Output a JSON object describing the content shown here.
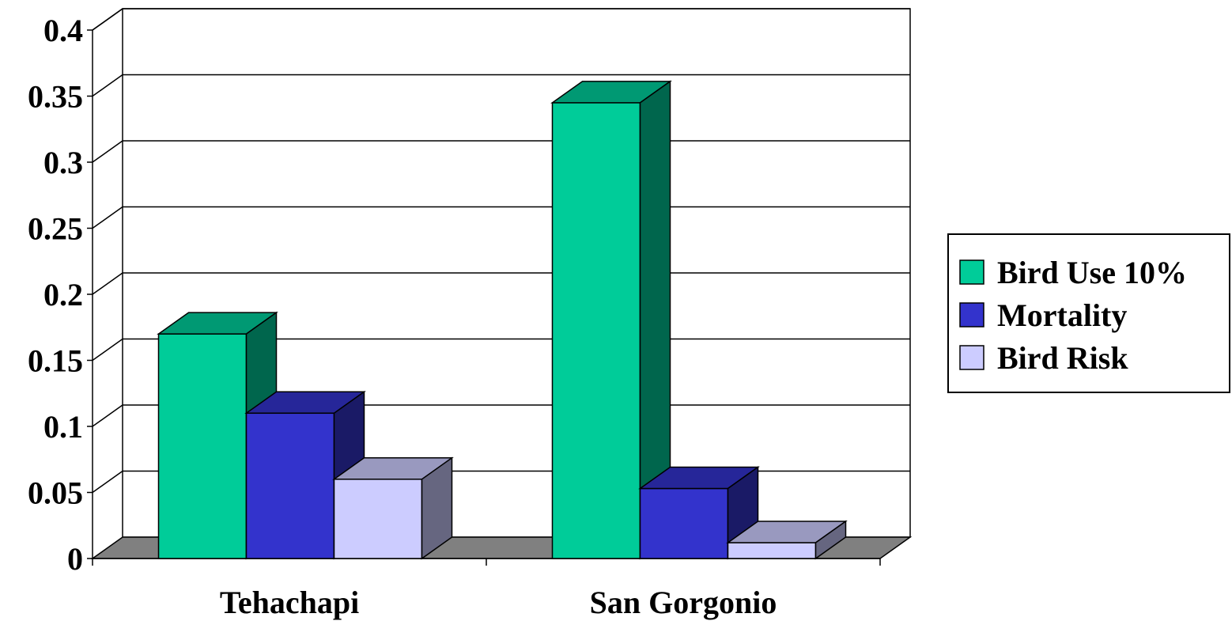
{
  "chart_data": {
    "type": "bar",
    "style": "3d-clustered-column",
    "categories": [
      "Tehachapi",
      "San Gorgonio"
    ],
    "series": [
      {
        "name": "Bird Use 10%",
        "values": [
          0.17,
          0.345
        ],
        "color": "#00CC99"
      },
      {
        "name": "Mortality",
        "values": [
          0.11,
          0.053
        ],
        "color": "#3333CC"
      },
      {
        "name": "Bird Risk",
        "values": [
          0.06,
          0.012
        ],
        "color": "#CCCCFF"
      }
    ],
    "ylim": [
      0,
      0.4
    ],
    "yticks": [
      "0",
      "0.05",
      "0.1",
      "0.15",
      "0.2",
      "0.25",
      "0.3",
      "0.35",
      "0.4"
    ],
    "grid": true,
    "legend": "right",
    "floor_color": "#808080"
  }
}
